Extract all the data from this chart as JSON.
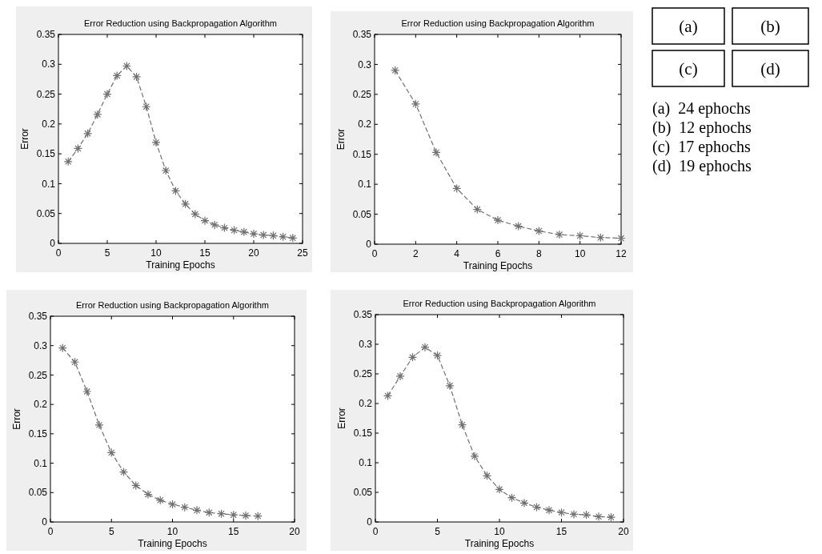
{
  "chart_data": [
    {
      "type": "line",
      "title": "Error Reduction using Backpropagation Algorithm",
      "xlabel": "Training Epochs",
      "ylabel": "Error",
      "x": [
        1,
        2,
        3,
        4,
        5,
        6,
        7,
        8,
        9,
        10,
        11,
        12,
        13,
        14,
        15,
        16,
        17,
        18,
        19,
        20,
        21,
        22,
        23,
        24
      ],
      "series": [
        {
          "color": "#707070",
          "values": [
            0.137,
            0.159,
            0.184,
            0.216,
            0.25,
            0.281,
            0.297,
            0.279,
            0.229,
            0.169,
            0.122,
            0.088,
            0.066,
            0.049,
            0.038,
            0.031,
            0.026,
            0.022,
            0.019,
            0.016,
            0.014,
            0.013,
            0.011,
            0.009
          ]
        }
      ],
      "xlim": [
        0,
        25
      ],
      "xticks": [
        0,
        5,
        10,
        15,
        20,
        25
      ],
      "ylim": [
        0,
        0.35
      ],
      "yticks": [
        0,
        0.05,
        0.1,
        0.15,
        0.2,
        0.25,
        0.3,
        0.35
      ],
      "marker": "cross",
      "line_style": "dashed",
      "grid": false
    },
    {
      "type": "line",
      "title": "Error Reduction using Backpropagation Algorithm",
      "xlabel": "Training Epochs",
      "ylabel": "Error",
      "x": [
        1,
        2,
        3,
        4,
        5,
        6,
        7,
        8,
        9,
        10,
        11,
        12
      ],
      "series": [
        {
          "color": "#707070",
          "values": [
            0.29,
            0.234,
            0.153,
            0.093,
            0.058,
            0.04,
            0.03,
            0.022,
            0.016,
            0.014,
            0.011,
            0.01
          ]
        }
      ],
      "xlim": [
        0,
        12
      ],
      "xticks": [
        0,
        2,
        4,
        6,
        8,
        10,
        12
      ],
      "ylim": [
        0,
        0.35
      ],
      "yticks": [
        0,
        0.05,
        0.1,
        0.15,
        0.2,
        0.25,
        0.3,
        0.35
      ],
      "marker": "cross",
      "line_style": "dashed",
      "grid": false
    },
    {
      "type": "line",
      "title": "Error Reduction using Backpropagation Algorithm",
      "xlabel": "Training Epochs",
      "ylabel": "Error",
      "x": [
        1,
        2,
        3,
        4,
        5,
        6,
        7,
        8,
        9,
        10,
        11,
        12,
        13,
        14,
        15,
        16,
        17
      ],
      "series": [
        {
          "color": "#707070",
          "values": [
            0.296,
            0.272,
            0.222,
            0.165,
            0.118,
            0.085,
            0.062,
            0.047,
            0.037,
            0.03,
            0.025,
            0.02,
            0.016,
            0.014,
            0.012,
            0.011,
            0.01
          ]
        }
      ],
      "xlim": [
        0,
        20
      ],
      "xticks": [
        0,
        5,
        10,
        15,
        20
      ],
      "ylim": [
        0,
        0.35
      ],
      "yticks": [
        0,
        0.05,
        0.1,
        0.15,
        0.2,
        0.25,
        0.3,
        0.35
      ],
      "marker": "cross",
      "line_style": "dashed",
      "grid": false
    },
    {
      "type": "line",
      "title": "Error Reduction using Backpropagation Algorithm",
      "xlabel": "Training Epochs",
      "ylabel": "Error",
      "x": [
        1,
        2,
        3,
        4,
        5,
        6,
        7,
        8,
        9,
        10,
        11,
        12,
        13,
        14,
        15,
        16,
        17,
        18,
        19
      ],
      "series": [
        {
          "color": "#707070",
          "values": [
            0.213,
            0.246,
            0.278,
            0.295,
            0.281,
            0.23,
            0.164,
            0.111,
            0.078,
            0.055,
            0.041,
            0.032,
            0.025,
            0.02,
            0.016,
            0.013,
            0.012,
            0.009,
            0.008
          ]
        }
      ],
      "xlim": [
        0,
        20
      ],
      "xticks": [
        0,
        5,
        10,
        15,
        20
      ],
      "ylim": [
        0,
        0.35
      ],
      "yticks": [
        0,
        0.05,
        0.1,
        0.15,
        0.2,
        0.25,
        0.3,
        0.35
      ],
      "marker": "cross",
      "line_style": "dashed",
      "grid": false
    },
    {
      "type": "other",
      "annotations": [
        "(a)",
        "(b)",
        "(c)",
        "(d)",
        "(a)  24 ephochs",
        "(b)  12 ephochs",
        "(c)  17 ephochs",
        "(d)  19 ephochs"
      ]
    }
  ]
}
